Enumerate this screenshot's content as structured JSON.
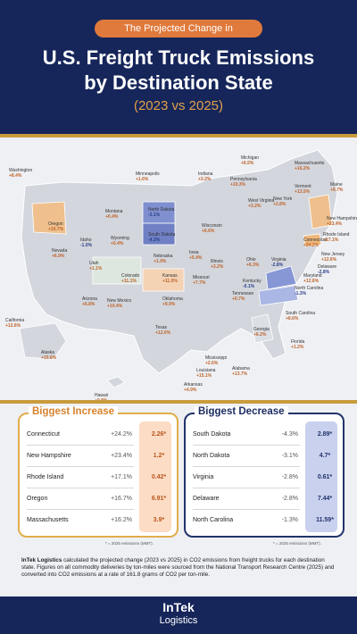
{
  "header": {
    "pill": "The Projected Change in",
    "title_line1": "U.S. Freight Truck Emissions",
    "title_line2": "by Destination State",
    "subtitle": "(2023 vs 2025)"
  },
  "colors": {
    "navy": "#16265a",
    "orange": "#e07a3c",
    "gold": "#c99b3c",
    "increase_fill": "#f1c89e",
    "decrease_fill": "#7f8fcf"
  },
  "map_labels": [
    {
      "name": "Washington",
      "value": "+8.4%"
    },
    {
      "name": "Oregon",
      "value": "+16.7%"
    },
    {
      "name": "California",
      "value": "+12.6%"
    },
    {
      "name": "Nevada",
      "value": "+6.9%"
    },
    {
      "name": "Idaho",
      "value": "-1.0%"
    },
    {
      "name": "Montana",
      "value": "+0.4%"
    },
    {
      "name": "Wyoming",
      "value": "+0.4%"
    },
    {
      "name": "Utah",
      "value": "+1.1%"
    },
    {
      "name": "Arizona",
      "value": "+6.8%"
    },
    {
      "name": "Colorado",
      "value": "+11.1%"
    },
    {
      "name": "New Mexico",
      "value": "+10.4%"
    },
    {
      "name": "Alaska",
      "value": "+15.6%"
    },
    {
      "name": "Hawaii",
      "value": "+0.8%"
    },
    {
      "name": "Minneapolis",
      "value": "+1.6%"
    },
    {
      "name": "North Dakota",
      "value": "-3.1%"
    },
    {
      "name": "South Dakota",
      "value": "-4.3%"
    },
    {
      "name": "Nebraska",
      "value": "+1.9%"
    },
    {
      "name": "Kansas",
      "value": "+11.0%"
    },
    {
      "name": "Oklahoma",
      "value": "+9.9%"
    },
    {
      "name": "Texas",
      "value": "+12.0%"
    },
    {
      "name": "Iowa",
      "value": "+5.4%"
    },
    {
      "name": "Missouri",
      "value": "+7.7%"
    },
    {
      "name": "Arkansas",
      "value": "+4.9%"
    },
    {
      "name": "Louisiana",
      "value": "+15.1%"
    },
    {
      "name": "Mississippi",
      "value": "+2.6%"
    },
    {
      "name": "Alabama",
      "value": "+13.7%"
    },
    {
      "name": "Wisconsin",
      "value": "+6.6%"
    },
    {
      "name": "Illinois",
      "value": "+3.2%"
    },
    {
      "name": "Indiana",
      "value": "+3.2%"
    },
    {
      "name": "Michigan",
      "value": "+6.5%"
    },
    {
      "name": "Ohio",
      "value": "+6.3%"
    },
    {
      "name": "Kentucky",
      "value": "-0.1%"
    },
    {
      "name": "Tennessee",
      "value": "+0.7%"
    },
    {
      "name": "Georgia",
      "value": "+6.2%"
    },
    {
      "name": "Florida",
      "value": "+1.2%"
    },
    {
      "name": "South Carolina",
      "value": "+8.6%"
    },
    {
      "name": "North Carolina",
      "value": "-1.3%"
    },
    {
      "name": "Virginia",
      "value": "-2.8%"
    },
    {
      "name": "West Virginia",
      "value": "+3.2%"
    },
    {
      "name": "Maryland",
      "value": "+12.6%"
    },
    {
      "name": "Delaware",
      "value": "-2.8%"
    },
    {
      "name": "New Jersey",
      "value": "+12.6%"
    },
    {
      "name": "Pennsylvania",
      "value": "+10.3%"
    },
    {
      "name": "New York",
      "value": "+2.8%"
    },
    {
      "name": "Connecticut",
      "value": "+24.2%"
    },
    {
      "name": "Rhode Island",
      "value": "+17.1%"
    },
    {
      "name": "Massachusetts",
      "value": "+16.2%"
    },
    {
      "name": "Vermont",
      "value": "+13.5%"
    },
    {
      "name": "New Hampshire",
      "value": "+23.4%"
    },
    {
      "name": "Maine",
      "value": "+9.7%"
    }
  ],
  "increase": {
    "title": "Biggest Increase",
    "rows": [
      {
        "state": "Connecticut",
        "pct": "+24.2%",
        "em": "2.26*"
      },
      {
        "state": "New Hampshire",
        "pct": "+23.4%",
        "em": "1.2*"
      },
      {
        "state": "Rhode Island",
        "pct": "+17.1%",
        "em": "0.42*"
      },
      {
        "state": "Oregon",
        "pct": "+16.7%",
        "em": "6.91*"
      },
      {
        "state": "Massachusetts",
        "pct": "+16.2%",
        "em": "3.9*"
      }
    ],
    "footnote": "* = 2025 emissions (MMT)."
  },
  "decrease": {
    "title": "Biggest Decrease",
    "rows": [
      {
        "state": "South Dakota",
        "pct": "-4.3%",
        "em": "2.89*"
      },
      {
        "state": "North Dakota",
        "pct": "-3.1%",
        "em": "4.7*"
      },
      {
        "state": "Virginia",
        "pct": "-2.8%",
        "em": "0.61*"
      },
      {
        "state": "Delaware",
        "pct": "-2.8%",
        "em": "7.44*"
      },
      {
        "state": "North Carolina",
        "pct": "-1.3%",
        "em": "11.59*"
      }
    ],
    "footnote": "* = 2025 emissions (MMT)."
  },
  "description": {
    "brand": "InTek Logistics",
    "text": " calculated the projected change (2023 vs 2025) in CO2 emissions from freight trucks for each destination state. Figures on all commodity deliveries by ton-miles were sourced from the National Transport Research Centre (2025) and converted into CO2 emissions at a rate of 161.8 grams of CO2 per ton-mile."
  },
  "logo": {
    "line1": "InTek",
    "line2": "Logistics"
  }
}
